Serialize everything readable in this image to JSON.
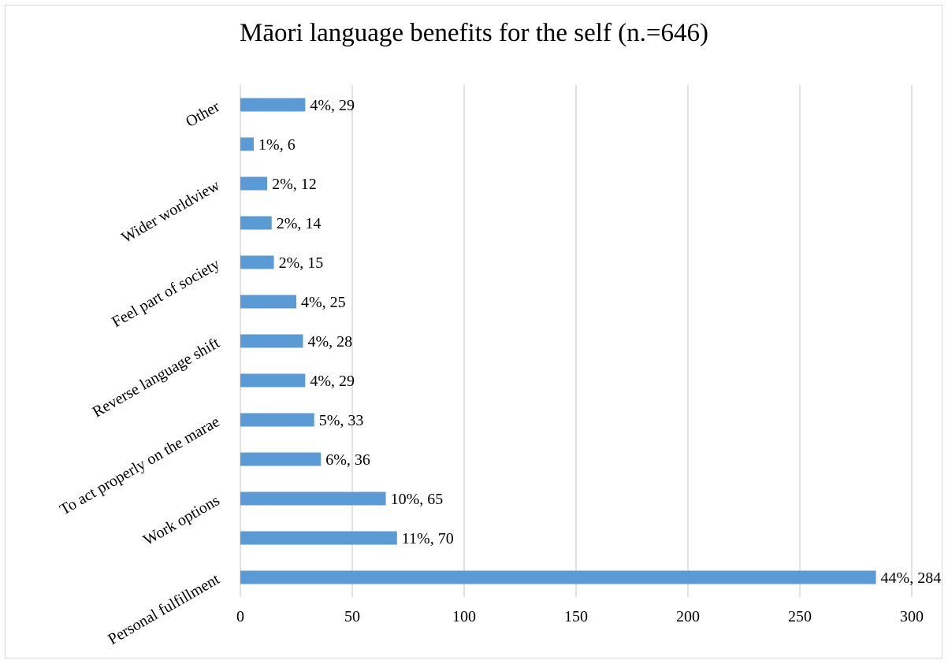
{
  "chart_data": {
    "type": "bar",
    "orientation": "horizontal",
    "title": "Māori language benefits for the self (n.=646)",
    "xlim": [
      0,
      300
    ],
    "x_ticks": [
      0,
      50,
      100,
      150,
      200,
      250,
      300
    ],
    "grid": true,
    "bar_color": "#5b9bd5",
    "categories": [
      "Personal fulfillment",
      "",
      "Work options",
      "",
      "To act properly on the marae",
      "",
      "Reverse language shift",
      "",
      "Feel part of society",
      "",
      "Wider worldview",
      "",
      "Other"
    ],
    "values": [
      284,
      70,
      65,
      36,
      33,
      29,
      28,
      25,
      15,
      14,
      12,
      6,
      29
    ],
    "data_labels": [
      "44%, 284",
      "11%, 70",
      "10%, 65",
      "6%, 36",
      "5%, 33",
      "4%, 29",
      "4%, 28",
      "4%, 25",
      "2%, 15",
      "2%, 14",
      "2%, 12",
      "1%, 6",
      "4%, 29"
    ]
  }
}
